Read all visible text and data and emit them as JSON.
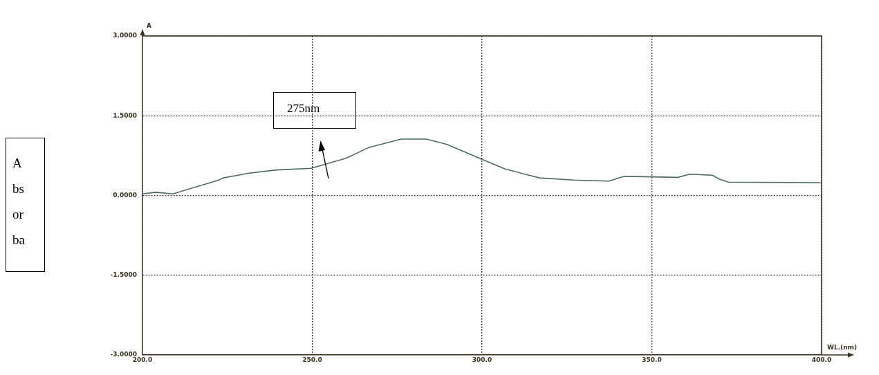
{
  "chart_data": {
    "type": "line",
    "xlabel": "WL.(nm)",
    "ylabel": "A",
    "annotations": [
      "275nm",
      "A bs or ba"
    ],
    "xlim": [
      200,
      400
    ],
    "ylim": [
      -3,
      3
    ],
    "xticks": [
      {
        "value": 200,
        "label": "200.0"
      },
      {
        "value": 250,
        "label": "250.0"
      },
      {
        "value": 300,
        "label": "300.0"
      },
      {
        "value": 350,
        "label": "350.0"
      },
      {
        "value": 400,
        "label": "400.0"
      }
    ],
    "yticks": [
      {
        "value": -3,
        "label": "-3.0000"
      },
      {
        "value": -1.5,
        "label": "-1.5000"
      },
      {
        "value": 0,
        "label": "0.0000"
      },
      {
        "value": 1.5,
        "label": "1.5000"
      },
      {
        "value": 3,
        "label": "3.0000"
      }
    ],
    "grid": true,
    "line_style": "solid",
    "marker": "none",
    "series": [
      {
        "color": "#4a6a68",
        "x": [
          200,
          203.9,
          209,
          215.7,
          222.5,
          223.8,
          231.4,
          239.5,
          249.7,
          259.9,
          266.6,
          276.2,
          283.6,
          289.7,
          300,
          306.7,
          316.9,
          327.1,
          337.3,
          342,
          357.7,
          361.1,
          367.8,
          370.2,
          372.6,
          399.7
        ],
        "values": [
          0.03,
          0.06,
          0.03,
          0.16,
          0.29,
          0.33,
          0.42,
          0.48,
          0.51,
          0.7,
          0.9,
          1.06,
          1.06,
          0.96,
          0.68,
          0.5,
          0.33,
          0.29,
          0.27,
          0.36,
          0.34,
          0.4,
          0.38,
          0.3,
          0.25,
          0.24
        ]
      }
    ]
  }
}
